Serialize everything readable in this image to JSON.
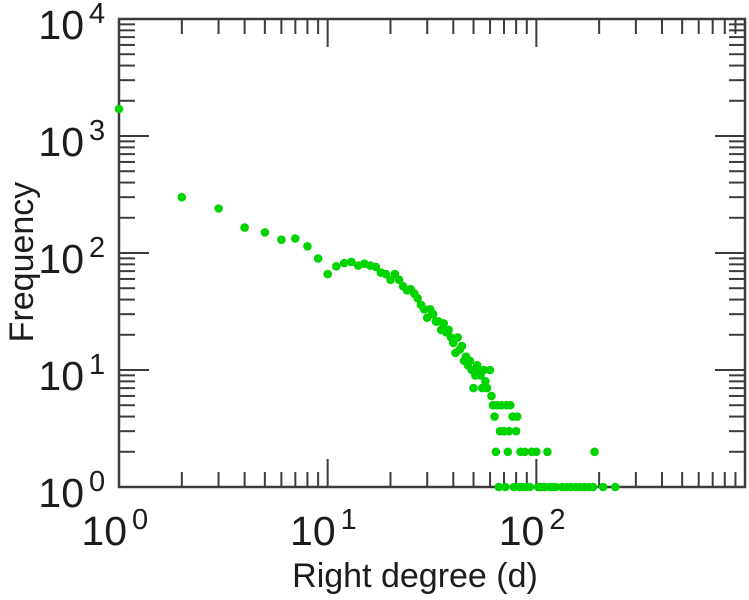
{
  "figure": {
    "background": "#ffffff",
    "axis_color": "#3c3c3c",
    "text_color": "#1c1c1c",
    "marker_color": "#00d400"
  },
  "axes": {
    "xlabel": "Right degree (d)",
    "ylabel": "Frequency"
  },
  "chart_data": {
    "type": "scatter",
    "title": "",
    "xlabel": "Right degree (d)",
    "ylabel": "Frequency",
    "x_scale": "log",
    "y_scale": "log",
    "xlim": [
      1,
      1000
    ],
    "ylim": [
      1,
      10000
    ],
    "grid": false,
    "legend": null,
    "marker": "filled-circle",
    "marker_color": "#00d400",
    "x_ticks": [
      {
        "mantissa": "10",
        "exponent": "0",
        "value": 1
      },
      {
        "mantissa": "10",
        "exponent": "1",
        "value": 10
      },
      {
        "mantissa": "10",
        "exponent": "2",
        "value": 100
      }
    ],
    "y_ticks": [
      {
        "mantissa": "10",
        "exponent": "0",
        "value": 1
      },
      {
        "mantissa": "10",
        "exponent": "1",
        "value": 10
      },
      {
        "mantissa": "10",
        "exponent": "2",
        "value": 100
      },
      {
        "mantissa": "10",
        "exponent": "3",
        "value": 1000
      },
      {
        "mantissa": "10",
        "exponent": "4",
        "value": 10000
      }
    ],
    "points": [
      [
        1,
        1700
      ],
      [
        2,
        300
      ],
      [
        3,
        240
      ],
      [
        4,
        165
      ],
      [
        5,
        150
      ],
      [
        6,
        130
      ],
      [
        7,
        133
      ],
      [
        8,
        114
      ],
      [
        9,
        90
      ],
      [
        10,
        66
      ],
      [
        11,
        77
      ],
      [
        12,
        82
      ],
      [
        13,
        84
      ],
      [
        14,
        78
      ],
      [
        15,
        81
      ],
      [
        16,
        78
      ],
      [
        17,
        76
      ],
      [
        18,
        68
      ],
      [
        19,
        66
      ],
      [
        20,
        59
      ],
      [
        21,
        66
      ],
      [
        22,
        59
      ],
      [
        23,
        52
      ],
      [
        24,
        48
      ],
      [
        25,
        49
      ],
      [
        26,
        45
      ],
      [
        27,
        41
      ],
      [
        28,
        36
      ],
      [
        29,
        33
      ],
      [
        30,
        28
      ],
      [
        31,
        33
      ],
      [
        32,
        30
      ],
      [
        33,
        26
      ],
      [
        34,
        26
      ],
      [
        35,
        22
      ],
      [
        36,
        25
      ],
      [
        37,
        21
      ],
      [
        38,
        22
      ],
      [
        39,
        19
      ],
      [
        40,
        17
      ],
      [
        41,
        14
      ],
      [
        42,
        19
      ],
      [
        43,
        15
      ],
      [
        44,
        16
      ],
      [
        45,
        12
      ],
      [
        46,
        13
      ],
      [
        47,
        11
      ],
      [
        48,
        12
      ],
      [
        49,
        10
      ],
      [
        50,
        7
      ],
      [
        51,
        9
      ],
      [
        52,
        11
      ],
      [
        53,
        10
      ],
      [
        54,
        9
      ],
      [
        55,
        7
      ],
      [
        56,
        10
      ],
      [
        57,
        8
      ],
      [
        58,
        7
      ],
      [
        60,
        10
      ],
      [
        61,
        6
      ],
      [
        62,
        5
      ],
      [
        63,
        4
      ],
      [
        64,
        2
      ],
      [
        65,
        5
      ],
      [
        66,
        1
      ],
      [
        67,
        3
      ],
      [
        68,
        5
      ],
      [
        70,
        3
      ],
      [
        71,
        1
      ],
      [
        72,
        5
      ],
      [
        73,
        2
      ],
      [
        74,
        3
      ],
      [
        75,
        5
      ],
      [
        77,
        4
      ],
      [
        78,
        1
      ],
      [
        80,
        3
      ],
      [
        81,
        4
      ],
      [
        83,
        1
      ],
      [
        84,
        2
      ],
      [
        86,
        1
      ],
      [
        88,
        2
      ],
      [
        90,
        1
      ],
      [
        93,
        1
      ],
      [
        95,
        2
      ],
      [
        100,
        2
      ],
      [
        102,
        1
      ],
      [
        105,
        1
      ],
      [
        108,
        1
      ],
      [
        110,
        1
      ],
      [
        113,
        2
      ],
      [
        116,
        1
      ],
      [
        119,
        1
      ],
      [
        124,
        1
      ],
      [
        133,
        1
      ],
      [
        140,
        1
      ],
      [
        147,
        1
      ],
      [
        155,
        1
      ],
      [
        162,
        1
      ],
      [
        170,
        1
      ],
      [
        178,
        1
      ],
      [
        187,
        1
      ],
      [
        190,
        2
      ],
      [
        209,
        1
      ],
      [
        239,
        1
      ]
    ]
  }
}
